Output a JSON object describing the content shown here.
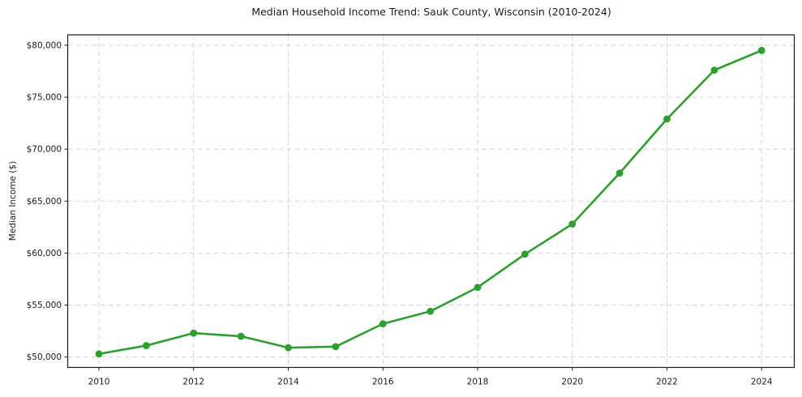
{
  "page": {
    "background": "#ffffff"
  },
  "chart_data": {
    "type": "line",
    "title": "Median Household Income Trend: Sauk County, Wisconsin (2010-2024)",
    "xlabel": "",
    "ylabel": "Median Income ($)",
    "x": [
      2010,
      2011,
      2012,
      2013,
      2014,
      2015,
      2016,
      2017,
      2018,
      2019,
      2020,
      2021,
      2022,
      2023,
      2024
    ],
    "values": [
      50300,
      51100,
      52300,
      52000,
      50900,
      51000,
      53200,
      54400,
      56700,
      59900,
      62800,
      67700,
      72900,
      77600,
      79500
    ],
    "series_name": "Median Household Income",
    "x_ticks": [
      2010,
      2012,
      2014,
      2016,
      2018,
      2020,
      2022,
      2024
    ],
    "x_tick_labels": [
      "2010",
      "2012",
      "2014",
      "2016",
      "2018",
      "2020",
      "2022",
      "2024"
    ],
    "y_ticks": [
      50000,
      55000,
      60000,
      65000,
      70000,
      75000,
      80000
    ],
    "y_tick_labels": [
      "$50,000",
      "$55,000",
      "$60,000",
      "$65,000",
      "$70,000",
      "$75,000",
      "$80,000"
    ],
    "xlim": [
      2009.34,
      2024.69
    ],
    "ylim": [
      49000,
      81000
    ],
    "grid": true,
    "grid_style": "dashed",
    "legend": "none",
    "marker": "circle",
    "colors": {
      "line": "#2ca02c",
      "marker": "#2ca02c",
      "grid": "#d4d4d4",
      "spine": "#1a1a1a",
      "text": "#1a1a1a",
      "background": "#ffffff"
    }
  }
}
